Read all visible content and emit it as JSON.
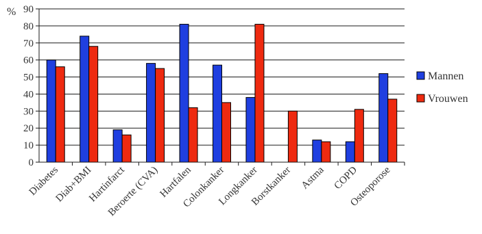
{
  "chart_data": {
    "type": "bar",
    "title": "",
    "xlabel": "",
    "ylabel": "%",
    "ylim": [
      0,
      90
    ],
    "yticks": [
      0,
      10,
      20,
      30,
      40,
      50,
      60,
      70,
      80,
      90
    ],
    "grid": true,
    "legend_position": "right",
    "categories": [
      "Diabetes",
      "Diab+BMI",
      "Hartinfarct",
      "Beroerte (CVA)",
      "Hartfalen",
      "Colonkanker",
      "Longkanker",
      "Borstkanker",
      "Astma",
      "COPD",
      "Osteoporose"
    ],
    "series": [
      {
        "name": "Mannen",
        "color": "#1f3fe0",
        "values": [
          60,
          74,
          19,
          58,
          81,
          57,
          38,
          null,
          13,
          12,
          52
        ]
      },
      {
        "name": "Vrouwen",
        "color": "#ee2a10",
        "values": [
          56,
          68,
          16,
          55,
          32,
          35,
          81,
          30,
          12,
          31,
          37
        ]
      }
    ]
  }
}
